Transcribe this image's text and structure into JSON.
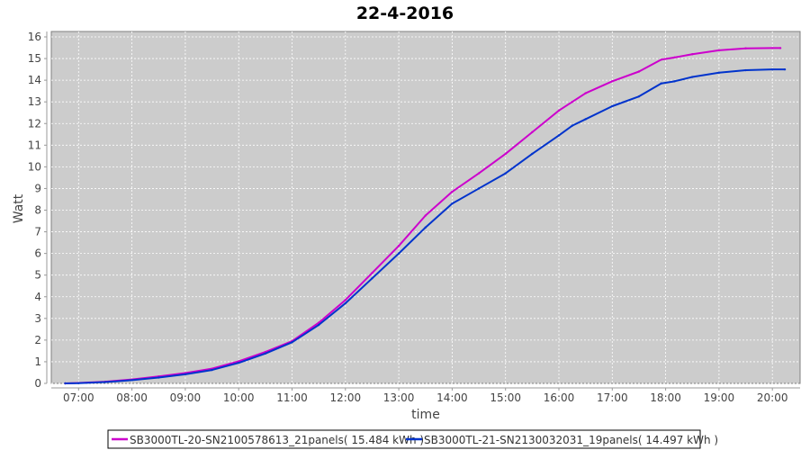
{
  "chart_data": {
    "type": "line",
    "title": "22-4-2016",
    "xlabel": "time",
    "ylabel": "Watt",
    "ylim": [
      0,
      16
    ],
    "xlim": [
      "06:30",
      "20:30"
    ],
    "y_ticks": [
      "0",
      "1",
      "2",
      "3",
      "4",
      "5",
      "6",
      "7",
      "8",
      "9",
      "10",
      "11",
      "12",
      "13",
      "14",
      "15",
      "16"
    ],
    "x_ticks": [
      "07:00",
      "08:00",
      "09:00",
      "10:00",
      "11:00",
      "12:00",
      "13:00",
      "14:00",
      "15:00",
      "16:00",
      "17:00",
      "18:00",
      "19:00",
      "20:00"
    ],
    "grid": true,
    "background": "#cccccc",
    "legend_position": "bottom",
    "x": [
      "06:45",
      "07:00",
      "07:30",
      "08:00",
      "08:30",
      "09:00",
      "09:30",
      "10:00",
      "10:30",
      "11:00",
      "11:30",
      "12:00",
      "12:30",
      "13:00",
      "13:30",
      "14:00",
      "14:30",
      "15:00",
      "15:30",
      "16:00",
      "16:15",
      "16:30",
      "17:00",
      "17:30",
      "17:55",
      "18:10",
      "18:30",
      "19:00",
      "19:30",
      "20:00"
    ],
    "series": [
      {
        "name": "SB3000TL-20-SN2100578613_21panels( 15.484 kWh )",
        "color": "#cc00cc",
        "end": "20:09",
        "values": [
          0,
          0.02,
          0.08,
          0.18,
          0.32,
          0.48,
          0.68,
          1.02,
          1.45,
          1.95,
          2.8,
          3.85,
          5.1,
          6.35,
          7.75,
          8.85,
          9.7,
          10.6,
          11.6,
          12.6,
          13.0,
          13.4,
          13.95,
          14.4,
          14.95,
          15.05,
          15.2,
          15.38,
          15.47,
          15.484
        ]
      },
      {
        "name": "SB3000TL-21-SN2130032031_19panels( 14.497 kWh )",
        "color": "#0033cc",
        "end": "20:14",
        "values": [
          0,
          0.01,
          0.06,
          0.15,
          0.27,
          0.42,
          0.62,
          0.95,
          1.38,
          1.9,
          2.7,
          3.7,
          4.85,
          6.0,
          7.2,
          8.3,
          9.0,
          9.7,
          10.6,
          11.45,
          11.9,
          12.2,
          12.8,
          13.25,
          13.85,
          13.95,
          14.15,
          14.35,
          14.46,
          14.497
        ]
      }
    ]
  }
}
